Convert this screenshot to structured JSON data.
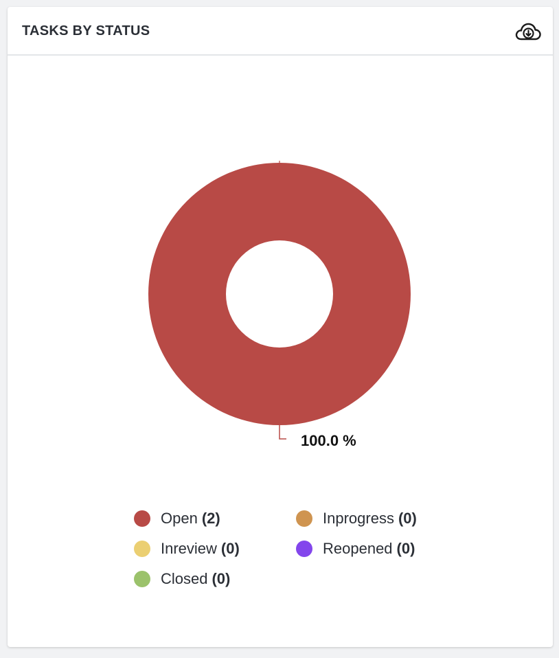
{
  "header": {
    "title": "TASKS BY STATUS",
    "download_icon": "cloud-download-icon"
  },
  "chart_data": {
    "type": "pie",
    "variant": "donut",
    "title": "TASKS BY STATUS",
    "slices": [
      {
        "label": "Open",
        "value": 2,
        "color": "#b84a46"
      },
      {
        "label": "Inprogress",
        "value": 0,
        "color": "#cf9450"
      },
      {
        "label": "Inreview",
        "value": 0,
        "color": "#ebcf72"
      },
      {
        "label": "Reopened",
        "value": 0,
        "color": "#8346ec"
      },
      {
        "label": "Closed",
        "value": 0,
        "color": "#9bc26b"
      }
    ],
    "data_labels": [
      "100.0 %"
    ],
    "legend_position": "bottom"
  },
  "legend": [
    {
      "label": "Open",
      "count": "(2)",
      "color": "#b84a46"
    },
    {
      "label": "Inprogress",
      "count": "(0)",
      "color": "#cf9450"
    },
    {
      "label": "Inreview",
      "count": "(0)",
      "color": "#ebcf72"
    },
    {
      "label": "Reopened",
      "count": "(0)",
      "color": "#8346ec"
    },
    {
      "label": "Closed",
      "count": "(0)",
      "color": "#9bc26b"
    }
  ]
}
